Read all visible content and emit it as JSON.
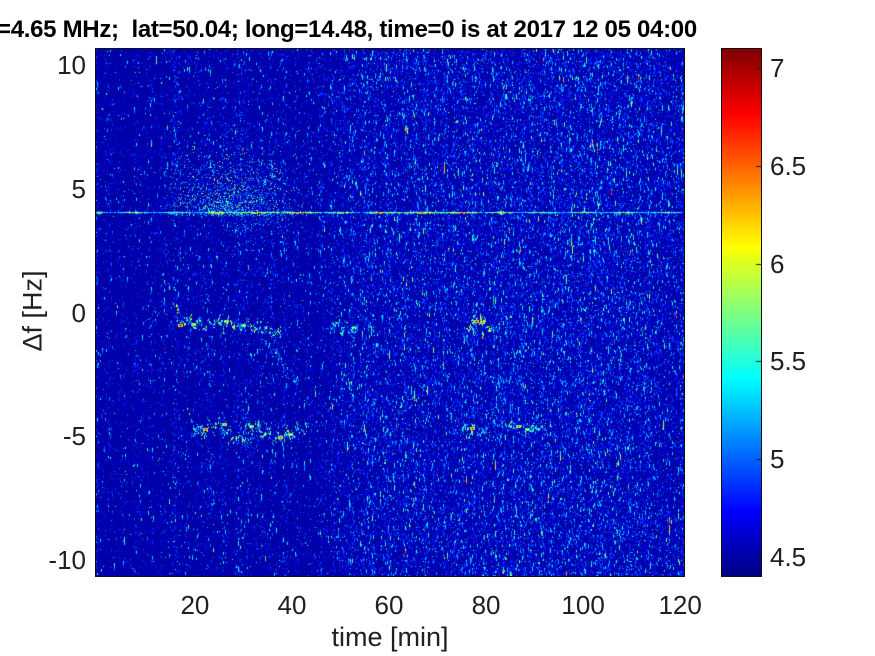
{
  "figure": {
    "background": "#ffffff"
  },
  "chart_data": {
    "type": "heatmap",
    "title": "=4.65 MHz;  lat=50.04; long=14.48, time=0 is at 2017 12 05 04:00",
    "xlabel": "time [min]",
    "ylabel": "Δf [Hz]",
    "xlim": [
      -0.6,
      121.0
    ],
    "ylim": [
      -10.7,
      10.7
    ],
    "xtick_labels": [
      "20",
      "40",
      "60",
      "80",
      "100",
      "120"
    ],
    "xtick_values": [
      20,
      40,
      60,
      80,
      100,
      120
    ],
    "ytick_labels": [
      "10",
      "5",
      "0",
      "-5",
      "-10"
    ],
    "ytick_values": [
      10,
      5,
      0,
      -5,
      -10
    ],
    "colorbar": {
      "colormap": "jet",
      "min": 4.4,
      "max": 7.1,
      "tick_labels": [
        "7",
        "6.5",
        "6",
        "5.5",
        "5",
        "4.5"
      ],
      "tick_values": [
        7,
        6.5,
        6,
        5.5,
        5,
        4.5
      ]
    },
    "noise_floor_value": 4.5,
    "interference_line": {
      "freq_hz": 4.05,
      "t_start": -0.6,
      "t_end": 121.0,
      "base_value": 5.4,
      "bright_intervals": [
        [
          23,
          46
        ],
        [
          57,
          79
        ]
      ]
    },
    "clouds": [
      {
        "t0": 14,
        "t1": 43,
        "f0": 3.95,
        "f1": 7.2,
        "peak_t": 27.5,
        "density": 0.5,
        "vmin": 4.85,
        "vmax": 6.15,
        "concentrate": "low"
      },
      {
        "t0": 20,
        "t1": 36,
        "f0": 6.8,
        "f1": 9.2,
        "peak_t": 28,
        "density": 0.07,
        "vmin": 4.8,
        "vmax": 5.3,
        "concentrate": "low"
      },
      {
        "t0": 27,
        "t1": 42,
        "f0": 2.3,
        "f1": 3.95,
        "peak_t": 33,
        "density": 0.3,
        "vmin": 4.85,
        "vmax": 5.6,
        "concentrate": "high"
      },
      {
        "t0": 28,
        "t1": 35,
        "f0": -5.9,
        "f1": -5.0,
        "peak_t": 31,
        "density": 0.22,
        "vmin": 4.9,
        "vmax": 5.6,
        "concentrate": "high"
      }
    ],
    "traces": [
      {
        "name": "doppler-trace-0hz",
        "pts": [
          [
            16,
            -0.25
          ],
          [
            18,
            -0.3
          ],
          [
            20,
            -0.45
          ],
          [
            22,
            -0.5
          ],
          [
            24,
            -0.35
          ],
          [
            26,
            -0.4
          ],
          [
            28,
            -0.45
          ],
          [
            30,
            -0.5
          ],
          [
            32,
            -0.55
          ],
          [
            34,
            -0.6
          ],
          [
            36,
            -0.75
          ],
          [
            37.5,
            -0.9
          ]
        ],
        "vmin": 5.0,
        "vmax": 6.2,
        "wiggle": 0.15,
        "gap": 0.2,
        "spread": 2
      },
      {
        "name": "trace-descending-tail",
        "pts": [
          [
            34,
            -1.1
          ],
          [
            36.5,
            -1.6
          ],
          [
            39,
            -2.2
          ],
          [
            41.5,
            -3.0
          ]
        ],
        "vmin": 4.9,
        "vmax": 5.5,
        "wiggle": 0.12,
        "gap": 0.45,
        "spread": 2
      },
      {
        "name": "trace-50min-0hz",
        "pts": [
          [
            48,
            -0.5
          ],
          [
            50.5,
            -0.6
          ],
          [
            53.5,
            -0.7
          ]
        ],
        "vmin": 5.0,
        "vmax": 5.9,
        "wiggle": 0.1,
        "gap": 0.3,
        "spread": 2
      },
      {
        "name": "blob-78min-0hz",
        "pts": [
          [
            76,
            -0.8
          ],
          [
            77.3,
            -0.35
          ],
          [
            78.6,
            -0.25
          ],
          [
            80,
            -0.45
          ],
          [
            81.5,
            -0.75
          ]
        ],
        "vmin": 5.2,
        "vmax": 6.3,
        "wiggle": 0.08,
        "gap": 0.15,
        "spread": 2
      },
      {
        "name": "doppler-trace-minus5hz",
        "pts": [
          [
            19,
            -4.35
          ],
          [
            21,
            -4.85
          ],
          [
            23,
            -4.6
          ],
          [
            25,
            -4.5
          ],
          [
            27,
            -4.95
          ],
          [
            29,
            -5.15
          ],
          [
            31,
            -4.6
          ],
          [
            33,
            -4.75
          ],
          [
            35,
            -4.9
          ],
          [
            37,
            -5.1
          ],
          [
            39,
            -4.95
          ],
          [
            41,
            -4.7
          ],
          [
            43,
            -4.6
          ]
        ],
        "vmin": 5.0,
        "vmax": 6.2,
        "wiggle": 0.2,
        "gap": 0.18,
        "spread": 3
      },
      {
        "name": "trace-77min-minus5hz",
        "pts": [
          [
            75,
            -4.6
          ],
          [
            77.5,
            -4.7
          ],
          [
            80.5,
            -4.75
          ]
        ],
        "vmin": 5.0,
        "vmax": 6.0,
        "wiggle": 0.1,
        "gap": 0.25,
        "spread": 2
      },
      {
        "name": "trace-87min-minus5hz",
        "pts": [
          [
            84,
            -4.5
          ],
          [
            86,
            -4.65
          ],
          [
            88,
            -4.75
          ],
          [
            90,
            -4.6
          ],
          [
            92.5,
            -4.75
          ]
        ],
        "vmin": 5.0,
        "vmax": 6.0,
        "wiggle": 0.12,
        "gap": 0.25,
        "spread": 2
      }
    ],
    "hotspots": [
      [
        17,
        -0.5,
        7.0
      ],
      [
        19.5,
        -0.45,
        6.4
      ],
      [
        26.5,
        -0.35,
        6.5
      ],
      [
        30,
        -0.5,
        6.3
      ],
      [
        52.5,
        -0.6,
        6.0
      ],
      [
        78,
        -0.35,
        7.0
      ],
      [
        79.2,
        -0.4,
        6.7
      ],
      [
        22,
        -4.7,
        6.9
      ],
      [
        26,
        -4.5,
        6.6
      ],
      [
        31.5,
        -4.6,
        6.4
      ],
      [
        37.5,
        -5.05,
        6.8
      ],
      [
        39.5,
        -4.9,
        6.5
      ],
      [
        77,
        -4.68,
        6.9
      ],
      [
        86.5,
        -4.6,
        6.7
      ],
      [
        88.5,
        -4.7,
        6.4
      ]
    ],
    "stripes": [
      [
        -0.3,
        0.3,
        0.4
      ],
      [
        2,
        0.12,
        0.7
      ],
      [
        5,
        0.1,
        0.7
      ],
      [
        8,
        0.14,
        0.8
      ],
      [
        11,
        0.16,
        0.8
      ],
      [
        13.5,
        0.18,
        0.7
      ],
      [
        16,
        0.3,
        0.9
      ],
      [
        18.5,
        0.16,
        0.7
      ],
      [
        21,
        0.18,
        0.8
      ],
      [
        23,
        0.22,
        0.8
      ],
      [
        26,
        0.2,
        0.8
      ],
      [
        29,
        0.28,
        0.9
      ],
      [
        31,
        0.22,
        0.8
      ],
      [
        33.5,
        0.2,
        0.8
      ],
      [
        36,
        0.22,
        0.8
      ],
      [
        38.5,
        0.24,
        0.8
      ],
      [
        41,
        0.2,
        0.8
      ],
      [
        43.5,
        0.18,
        0.8
      ],
      [
        46,
        0.25,
        0.9
      ],
      [
        48.5,
        0.22,
        0.8
      ],
      [
        50.5,
        0.28,
        0.8
      ],
      [
        52.5,
        0.3,
        0.8
      ],
      [
        55,
        0.38,
        0.9
      ],
      [
        57,
        0.35,
        0.9
      ],
      [
        59.5,
        0.4,
        0.9
      ],
      [
        61.5,
        0.32,
        0.8
      ],
      [
        63.5,
        0.38,
        0.9
      ],
      [
        65.5,
        0.35,
        0.8
      ],
      [
        67.5,
        0.4,
        0.9
      ],
      [
        69.5,
        0.36,
        0.8
      ],
      [
        71.5,
        0.38,
        0.9
      ],
      [
        73.5,
        0.35,
        0.8
      ],
      [
        75.5,
        0.42,
        0.9
      ],
      [
        77.5,
        0.45,
        0.9
      ],
      [
        79.5,
        0.35,
        0.8
      ],
      [
        81.5,
        0.38,
        0.9
      ],
      [
        83.5,
        0.42,
        0.9
      ],
      [
        85.5,
        0.4,
        0.9
      ],
      [
        87.5,
        0.45,
        0.9
      ],
      [
        89.5,
        0.4,
        0.9
      ],
      [
        91.5,
        0.44,
        0.9
      ],
      [
        93.5,
        0.42,
        0.9
      ],
      [
        95.5,
        0.46,
        1.0
      ],
      [
        97.5,
        0.42,
        0.9
      ],
      [
        99.5,
        0.46,
        1.0
      ],
      [
        101.5,
        0.44,
        0.9
      ],
      [
        103.5,
        0.46,
        1.0
      ],
      [
        105.5,
        0.44,
        0.9
      ],
      [
        107.5,
        0.42,
        0.9
      ],
      [
        109.5,
        0.44,
        0.9
      ],
      [
        111.5,
        0.4,
        0.9
      ],
      [
        113.5,
        0.38,
        0.9
      ],
      [
        115.5,
        0.34,
        0.9
      ],
      [
        117.5,
        0.3,
        0.8
      ],
      [
        119.5,
        0.28,
        0.8
      ],
      [
        120.6,
        0.4,
        0.5
      ]
    ],
    "right_region_boost": {
      "t_start": 45,
      "ramp_min": 6,
      "strength": 0.2
    }
  }
}
